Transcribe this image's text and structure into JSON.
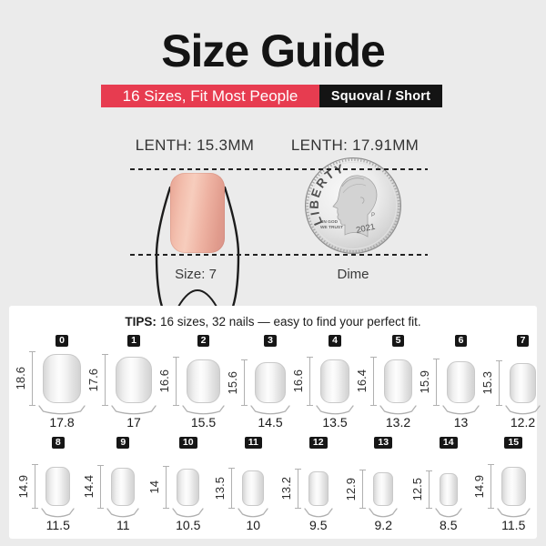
{
  "colors": {
    "background": "#ebebeb",
    "accent_red": "#e73c50",
    "banner_black": "#141414",
    "panel": "#ffffff"
  },
  "header": {
    "title": "Size Guide",
    "banner_red": "16 Sizes, Fit Most People",
    "banner_black": "Squoval / Short"
  },
  "comparison": {
    "nail_length_label": "LENTH: 15.3MM",
    "coin_length_label": "LENTH: 17.91MM",
    "nail_caption": "Size: 7",
    "coin_caption": "Dime",
    "coin_text": {
      "liberty": "LIBERTY",
      "motto_line1": "IN GOD",
      "motto_line2": "WE TRUST",
      "year": "2021",
      "mintmark": "P"
    }
  },
  "size_chart": {
    "tips_label": "TIPS:",
    "tips_text": "16 sizes, 32 nails — easy to find your perfect fit.",
    "cells": [
      {
        "size": "0",
        "length": "18.6",
        "width": "17.8"
      },
      {
        "size": "1",
        "length": "17.6",
        "width": "17"
      },
      {
        "size": "2",
        "length": "16.6",
        "width": "15.5"
      },
      {
        "size": "3",
        "length": "15.6",
        "width": "14.5"
      },
      {
        "size": "4",
        "length": "16.6",
        "width": "13.5"
      },
      {
        "size": "5",
        "length": "16.4",
        "width": "13.2"
      },
      {
        "size": "6",
        "length": "15.9",
        "width": "13"
      },
      {
        "size": "7",
        "length": "15.3",
        "width": "12.2"
      },
      {
        "size": "8",
        "length": "14.9",
        "width": "11.5"
      },
      {
        "size": "9",
        "length": "14.4",
        "width": "11"
      },
      {
        "size": "10",
        "length": "14",
        "width": "10.5"
      },
      {
        "size": "11",
        "length": "13.5",
        "width": "10"
      },
      {
        "size": "12",
        "length": "13.2",
        "width": "9.5"
      },
      {
        "size": "13",
        "length": "12.9",
        "width": "9.2"
      },
      {
        "size": "14",
        "length": "12.5",
        "width": "8.5"
      },
      {
        "size": "15",
        "length": "14.9",
        "width": "11.5"
      }
    ]
  }
}
